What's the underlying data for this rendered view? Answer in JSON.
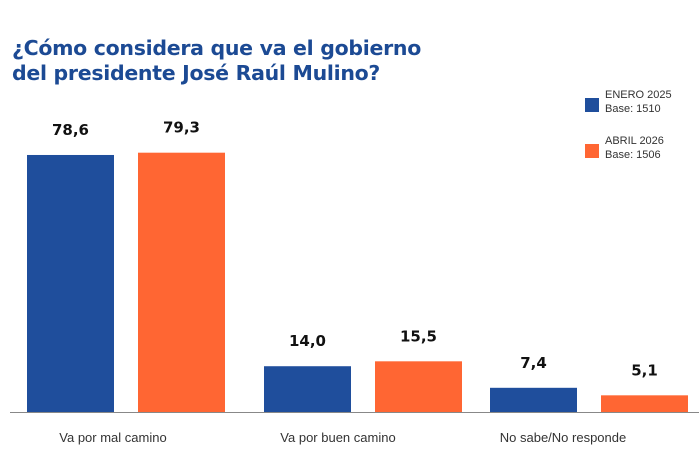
{
  "chart_data": {
    "type": "bar",
    "title": "¿Cómo considera que va el gobierno del presidente José Raúl Mulino?",
    "title_lines": [
      "¿Cómo considera que va el gobierno",
      "del presidente José Raúl Mulino?"
    ],
    "categories": [
      "Va por mal camino",
      "Va por buen camino",
      "No sabe/No responde"
    ],
    "series": [
      {
        "name": "ENERO 2025",
        "base": "Base: 1510",
        "color": "#1f4e9c",
        "values": [
          78.6,
          14.0,
          7.4
        ],
        "labels": [
          "78,6",
          "14,0",
          "7,4"
        ]
      },
      {
        "name": "ABRIL 2026",
        "base": "Base: 1506",
        "color": "#ff6633",
        "values": [
          79.3,
          15.5,
          5.1
        ],
        "labels": [
          "79,3",
          "15,5",
          "5,1"
        ]
      }
    ],
    "ylim": [
      0,
      100
    ],
    "grid": false,
    "legend_position": "top-right"
  }
}
